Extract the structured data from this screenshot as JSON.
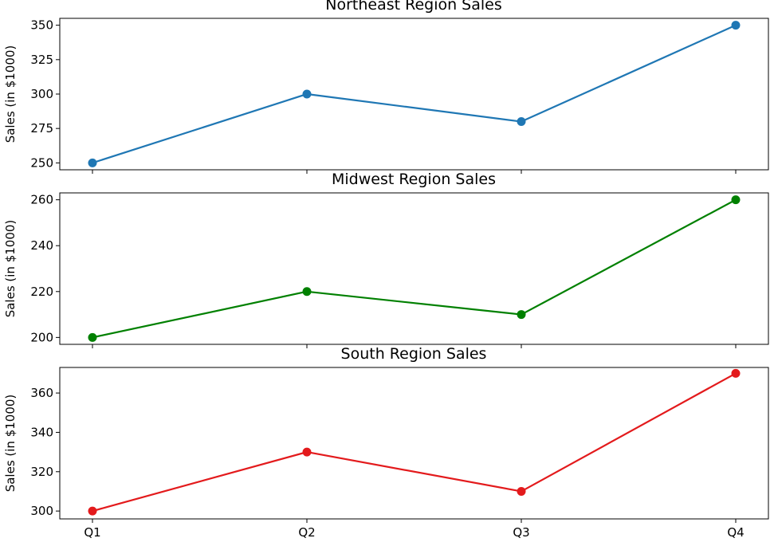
{
  "chart_data": [
    {
      "type": "line",
      "title": "Northeast Region Sales",
      "ylabel": "Sales (in $1000)",
      "categories": [
        "Q1",
        "Q2",
        "Q3",
        "Q4"
      ],
      "values": [
        250,
        300,
        280,
        350
      ],
      "color": "#1f77b4",
      "ylim": [
        245,
        355
      ],
      "yticks": [
        250,
        275,
        300,
        325,
        350
      ],
      "show_xtick_labels": false,
      "grid": false
    },
    {
      "type": "line",
      "title": "Midwest Region Sales",
      "ylabel": "Sales (in $1000)",
      "categories": [
        "Q1",
        "Q2",
        "Q3",
        "Q4"
      ],
      "values": [
        200,
        220,
        210,
        260
      ],
      "color": "#008000",
      "ylim": [
        197,
        263
      ],
      "yticks": [
        200,
        220,
        240,
        260
      ],
      "show_xtick_labels": false,
      "grid": false
    },
    {
      "type": "line",
      "title": "South Region Sales",
      "ylabel": "Sales (in $1000)",
      "categories": [
        "Q1",
        "Q2",
        "Q3",
        "Q4"
      ],
      "values": [
        300,
        330,
        310,
        370
      ],
      "color": "#e31a1c",
      "ylim": [
        296,
        373
      ],
      "yticks": [
        300,
        320,
        340,
        360
      ],
      "show_xtick_labels": true,
      "grid": false
    }
  ]
}
